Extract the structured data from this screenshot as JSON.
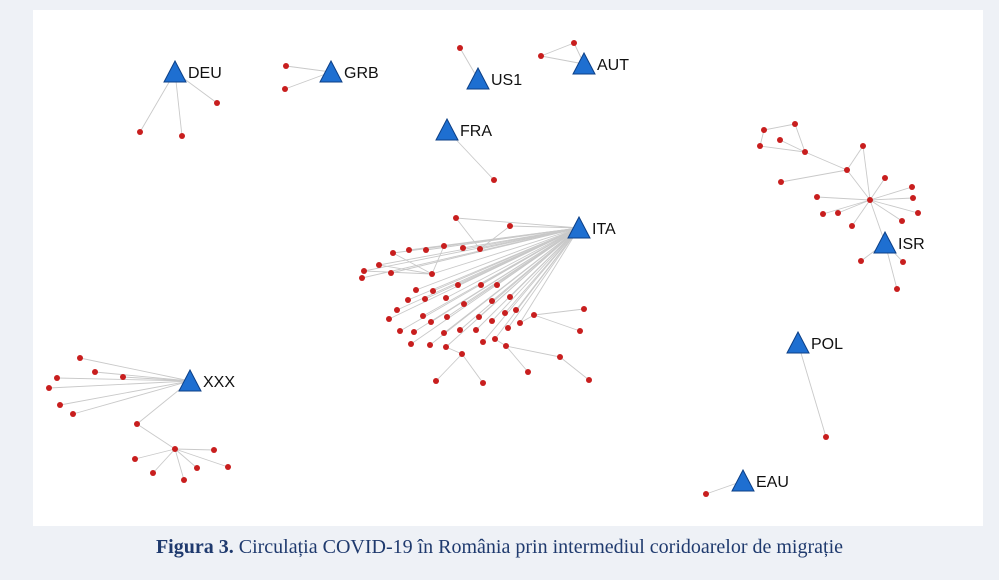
{
  "caption": {
    "label": "Figura 3.",
    "text": "Circulația COVID-19 în România prin intermediul coridoarelor de migrație"
  },
  "colors": {
    "hub": "#1e6fd1",
    "hub_stroke": "#0c3f86",
    "case": "#c81e1e",
    "edge": "#c9c9c9",
    "caption": "#1f3a6e"
  },
  "hubs": [
    {
      "id": "DEU",
      "label": "DEU"
    },
    {
      "id": "GRB",
      "label": "GRB"
    },
    {
      "id": "US1",
      "label": "US1"
    },
    {
      "id": "AUT",
      "label": "AUT"
    },
    {
      "id": "FRA",
      "label": "FRA"
    },
    {
      "id": "ITA",
      "label": "ITA"
    },
    {
      "id": "ISR",
      "label": "ISR"
    },
    {
      "id": "POL",
      "label": "POL"
    },
    {
      "id": "EAU",
      "label": "EAU"
    },
    {
      "id": "XXX",
      "label": "XXX"
    }
  ]
}
